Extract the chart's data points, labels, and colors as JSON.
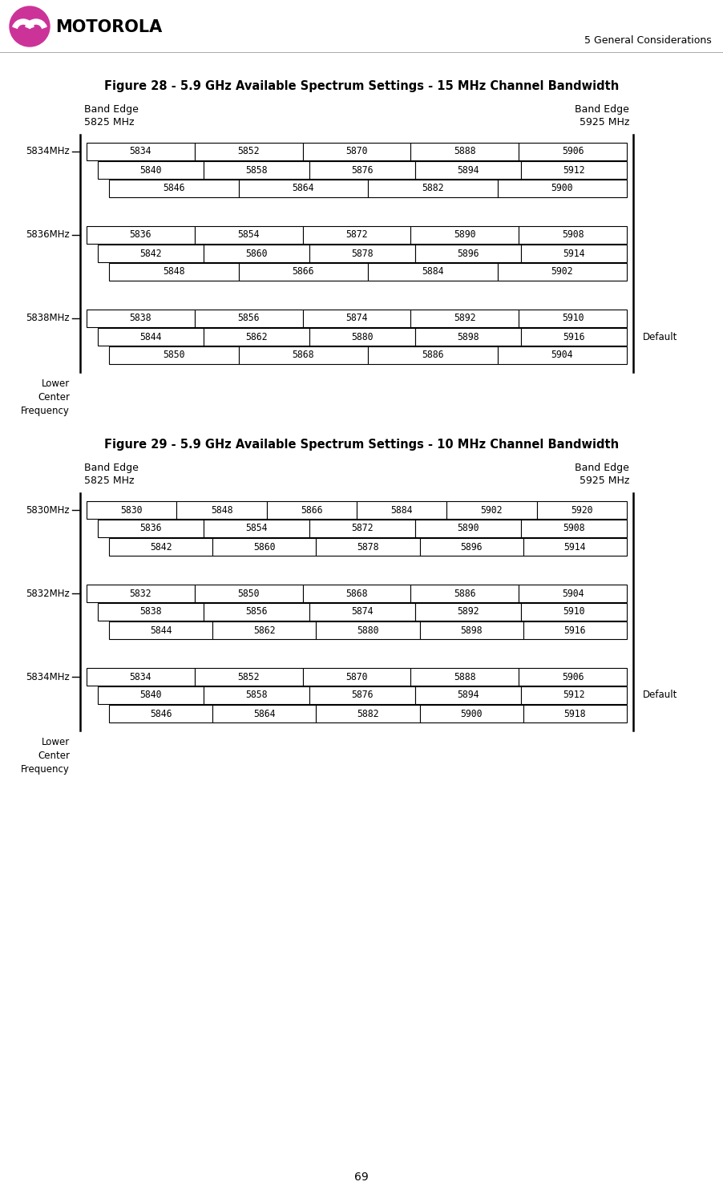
{
  "page_title": "5 General Considerations",
  "page_number": "69",
  "fig28_title": "Figure 28 - 5.9 GHz Available Spectrum Settings - 15 MHz Channel Bandwidth",
  "fig29_title": "Figure 29 - 5.9 GHz Available Spectrum Settings - 10 MHz Channel Bandwidth",
  "fig28_groups": [
    {
      "label": "5834MHz",
      "rows": [
        [
          "5834",
          "5852",
          "5870",
          "5888",
          "5906"
        ],
        [
          "5840",
          "5858",
          "5876",
          "5894",
          "5912"
        ],
        [
          "5846",
          "5864",
          "5882",
          "5900"
        ]
      ],
      "default": false
    },
    {
      "label": "5836MHz",
      "rows": [
        [
          "5836",
          "5854",
          "5872",
          "5890",
          "5908"
        ],
        [
          "5842",
          "5860",
          "5878",
          "5896",
          "5914"
        ],
        [
          "5848",
          "5866",
          "5884",
          "5902"
        ]
      ],
      "default": false
    },
    {
      "label": "5838MHz",
      "rows": [
        [
          "5838",
          "5856",
          "5874",
          "5892",
          "5910"
        ],
        [
          "5844",
          "5862",
          "5880",
          "5898",
          "5916"
        ],
        [
          "5850",
          "5868",
          "5886",
          "5904"
        ]
      ],
      "default": true
    }
  ],
  "fig29_groups": [
    {
      "label": "5830MHz",
      "rows": [
        [
          "5830",
          "5848",
          "5866",
          "5884",
          "5902",
          "5920"
        ],
        [
          "5836",
          "5854",
          "5872",
          "5890",
          "5908"
        ],
        [
          "5842",
          "5860",
          "5878",
          "5896",
          "5914"
        ]
      ],
      "default": false
    },
    {
      "label": "5832MHz",
      "rows": [
        [
          "5832",
          "5850",
          "5868",
          "5886",
          "5904"
        ],
        [
          "5838",
          "5856",
          "5874",
          "5892",
          "5910"
        ],
        [
          "5844",
          "5862",
          "5880",
          "5898",
          "5916"
        ]
      ],
      "default": false
    },
    {
      "label": "5834MHz",
      "rows": [
        [
          "5834",
          "5852",
          "5870",
          "5888",
          "5906"
        ],
        [
          "5840",
          "5858",
          "5876",
          "5894",
          "5912"
        ],
        [
          "5846",
          "5864",
          "5882",
          "5900",
          "5918"
        ]
      ],
      "default": true
    }
  ],
  "logo_color": "#CC3399",
  "header_text": "5 General Considerations",
  "motorola_text": "MOTOROLA",
  "band_edge_left_line1": "Band Edge",
  "band_edge_left_line2": "5825 MHz",
  "band_edge_right_line1": "Band Edge",
  "band_edge_right_line2": "5925 MHz",
  "lcf_label": "Lower\nCenter\nFrequency",
  "default_label": "Default"
}
